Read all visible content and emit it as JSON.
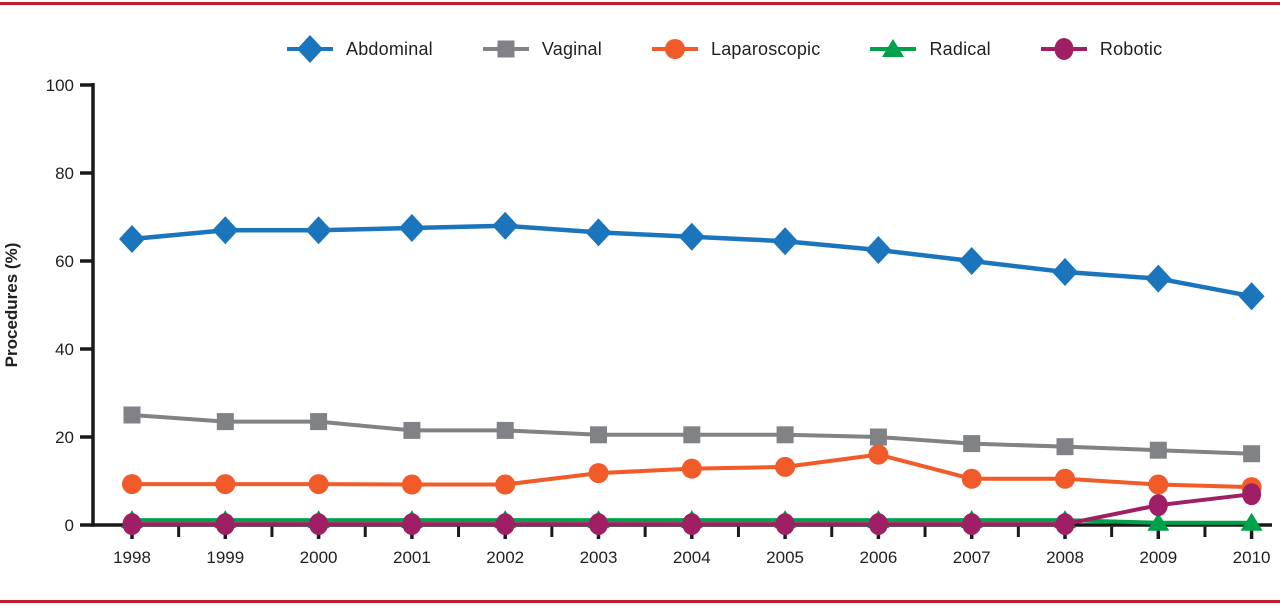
{
  "page": {
    "background_color": "#ffffff",
    "top_border_color": "#be1e2d",
    "bottom_border_color": "#be1e2d"
  },
  "chart_data": {
    "type": "line",
    "title": "",
    "xlabel": "",
    "ylabel": "Procedures (%)",
    "ylim": [
      0,
      100
    ],
    "yticks": [
      0,
      20,
      40,
      60,
      80,
      100
    ],
    "grid": "off",
    "legend_position": "top",
    "x": [
      1998,
      1999,
      2000,
      2001,
      2002,
      2003,
      2004,
      2005,
      2006,
      2007,
      2008,
      2009,
      2010
    ],
    "series": [
      {
        "name": "Abdominal",
        "color": "#1b75bc",
        "marker": "diamond",
        "values": [
          65,
          67,
          67,
          67.5,
          68,
          66.5,
          65.5,
          64.5,
          62.5,
          60,
          57.5,
          56,
          52
        ]
      },
      {
        "name": "Vaginal",
        "color": "#808285",
        "marker": "square",
        "values": [
          25,
          23.5,
          23.5,
          21.5,
          21.5,
          20.5,
          20.5,
          20.5,
          20,
          18.5,
          17.8,
          17,
          16.2
        ]
      },
      {
        "name": "Laparoscopic",
        "color": "#f15a29",
        "marker": "circle",
        "values": [
          9.3,
          9.3,
          9.3,
          9.2,
          9.2,
          11.8,
          12.8,
          13.2,
          16,
          10.5,
          10.5,
          9.2,
          8.6
        ]
      },
      {
        "name": "Radical",
        "color": "#00a14b",
        "marker": "triangle",
        "values": [
          1.1,
          1.1,
          1.1,
          1.1,
          1.1,
          1.1,
          1.1,
          1.1,
          1.1,
          1.1,
          1.1,
          0.5,
          0.5
        ]
      },
      {
        "name": "Robotic",
        "color": "#9e1f63",
        "marker": "ellipse",
        "values": [
          0.2,
          0.2,
          0.2,
          0.2,
          0.2,
          0.2,
          0.2,
          0.2,
          0.2,
          0.2,
          0.2,
          4.5,
          7
        ]
      }
    ]
  }
}
